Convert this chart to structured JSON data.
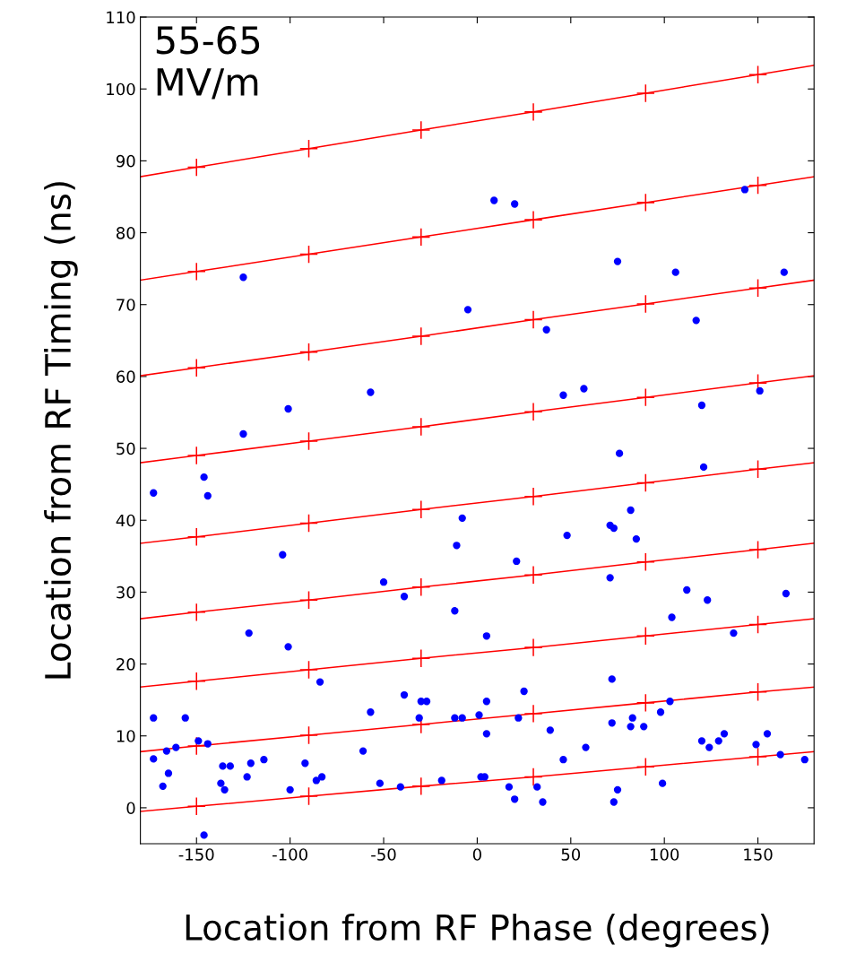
{
  "chart_data": {
    "type": "scatter",
    "xlabel": "Location from RF Phase (degrees)",
    "ylabel": "Location from RF Timing (ns)",
    "annotations": [
      "55-65\nMV/m"
    ],
    "xlim": [
      -180,
      180
    ],
    "xticks": [
      -150,
      -100,
      -50,
      0,
      50,
      100,
      150
    ],
    "ylim": [
      -5,
      110
    ],
    "yticks": [
      0,
      10,
      20,
      30,
      40,
      50,
      60,
      70,
      80,
      90,
      100,
      110
    ],
    "grid": false,
    "legend": false,
    "series": [
      {
        "color": "#0000ff",
        "marker": "circle",
        "x": [
          -173,
          -146,
          -144,
          -125,
          -125,
          -101,
          -57,
          -5,
          9,
          20,
          37,
          46,
          57,
          75,
          106,
          117,
          120,
          143,
          151,
          164,
          76,
          121,
          -104,
          -8,
          -11,
          -50,
          -39,
          21,
          48,
          71,
          73,
          82,
          85,
          71,
          112,
          123,
          165,
          104,
          137,
          -122,
          -101,
          -12,
          5,
          72,
          -84,
          -173,
          -156,
          -173,
          -168,
          -166,
          -165,
          -161,
          -149,
          -144,
          -136,
          -137,
          -135,
          -132,
          -123,
          -121,
          -114,
          -100,
          -92,
          -86,
          -83,
          -61,
          -57,
          -52,
          -39,
          -41,
          -31,
          -30,
          -27,
          -19,
          -12,
          -8,
          1,
          2,
          4,
          5,
          5,
          17,
          20,
          22,
          25,
          32,
          35,
          39,
          46,
          58,
          72,
          73,
          75,
          82,
          83,
          89,
          98,
          99,
          103,
          120,
          124,
          129,
          132,
          149,
          155,
          162,
          175,
          -146
        ],
        "values": [
          43.8,
          46,
          43.4,
          73.8,
          52,
          55.5,
          57.8,
          69.3,
          84.5,
          84,
          66.5,
          57.4,
          58.3,
          76,
          74.5,
          67.8,
          56,
          86,
          58,
          74.5,
          49.3,
          47.4,
          35.2,
          40.3,
          36.5,
          31.4,
          29.4,
          34.3,
          37.9,
          39.3,
          38.9,
          41.4,
          37.4,
          32,
          30.3,
          28.9,
          29.8,
          26.5,
          24.3,
          24.3,
          22.4,
          27.4,
          23.9,
          17.9,
          17.5,
          12.5,
          12.5,
          6.8,
          3,
          7.9,
          4.8,
          8.4,
          9.3,
          8.9,
          5.8,
          3.4,
          2.5,
          5.8,
          4.3,
          6.2,
          6.7,
          2.5,
          6.2,
          3.8,
          4.3,
          7.9,
          13.3,
          3.4,
          15.7,
          2.9,
          12.5,
          14.8,
          14.8,
          3.8,
          12.5,
          12.5,
          12.9,
          4.3,
          4.3,
          10.3,
          14.8,
          2.9,
          1.2,
          12.5,
          16.2,
          2.9,
          0.8,
          10.8,
          6.7,
          8.4,
          11.8,
          0.8,
          2.5,
          11.3,
          12.5,
          11.3,
          13.3,
          3.4,
          14.8,
          9.3,
          8.4,
          9.3,
          10.3,
          8.8,
          10.3,
          7.4,
          6.7,
          -3.8
        ]
      },
      {
        "type": "line",
        "color": "#ff0000",
        "marker": "cross",
        "x": [
          -180,
          -150,
          -90,
          -30,
          30,
          90,
          150,
          180
        ],
        "values": [
          87.8,
          89.1,
          91.7,
          94.3,
          96.8,
          99.4,
          102.0,
          103.3
        ]
      },
      {
        "type": "line",
        "color": "#ff0000",
        "marker": "cross",
        "x": [
          -180,
          -150,
          -90,
          -30,
          30,
          90,
          150,
          180
        ],
        "values": [
          73.4,
          74.6,
          77.0,
          79.4,
          81.8,
          84.2,
          86.6,
          87.8
        ]
      },
      {
        "type": "line",
        "color": "#ff0000",
        "marker": "cross",
        "x": [
          -180,
          -150,
          -90,
          -30,
          30,
          90,
          150,
          180
        ],
        "values": [
          60.1,
          61.2,
          63.4,
          65.6,
          67.9,
          70.1,
          72.3,
          73.4
        ]
      },
      {
        "type": "line",
        "color": "#ff0000",
        "marker": "cross",
        "x": [
          -180,
          -150,
          -90,
          -30,
          30,
          90,
          150,
          180
        ],
        "values": [
          48.0,
          49.0,
          51.0,
          53.0,
          55.1,
          57.1,
          59.1,
          60.1
        ]
      },
      {
        "type": "line",
        "color": "#ff0000",
        "marker": "cross",
        "x": [
          -180,
          -150,
          -90,
          -30,
          30,
          90,
          150,
          180
        ],
        "values": [
          36.8,
          37.7,
          39.6,
          41.5,
          43.3,
          45.2,
          47.1,
          48.0
        ]
      },
      {
        "type": "line",
        "color": "#ff0000",
        "marker": "cross",
        "x": [
          -180,
          -150,
          -90,
          -30,
          30,
          90,
          150,
          180
        ],
        "values": [
          26.3,
          27.2,
          28.9,
          30.7,
          32.4,
          34.2,
          35.9,
          36.8
        ]
      },
      {
        "type": "line",
        "color": "#ff0000",
        "marker": "cross",
        "x": [
          -180,
          -150,
          -90,
          -30,
          30,
          90,
          150,
          180
        ],
        "values": [
          16.8,
          17.6,
          19.2,
          20.8,
          22.3,
          23.9,
          25.5,
          26.3
        ]
      },
      {
        "type": "line",
        "color": "#ff0000",
        "marker": "cross",
        "x": [
          -180,
          -150,
          -90,
          -30,
          30,
          90,
          150,
          180
        ],
        "values": [
          7.8,
          8.6,
          10.1,
          11.6,
          13.1,
          14.6,
          16.1,
          16.8
        ]
      },
      {
        "type": "line",
        "color": "#ff0000",
        "marker": "cross",
        "x": [
          -180,
          -150,
          -90,
          -30,
          30,
          90,
          150,
          180
        ],
        "values": [
          -0.5,
          0.2,
          1.6,
          3.0,
          4.3,
          5.7,
          7.1,
          7.8
        ]
      }
    ]
  }
}
